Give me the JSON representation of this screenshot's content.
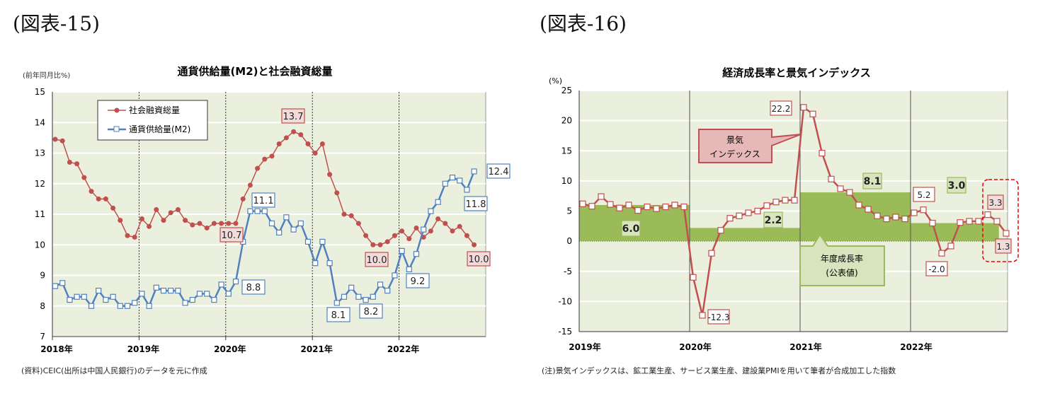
{
  "figures": {
    "left_label": "(図表-15)",
    "right_label": "(図表-16)"
  },
  "notes": {
    "left": "(資料)CEIC(出所は中国人民銀行)のデータを元に作成",
    "right": "(注)景気インデックスは、鉱工業生産、サービス業生産、建設業PMIを用いて筆者が合成加工した指数"
  },
  "chart_data": [
    {
      "type": "line",
      "title": "通貨供給量(M2)と社会融資総量",
      "ylabel": "(前年同月比%)",
      "ylim": [
        7,
        15
      ],
      "yticks": [
        7,
        8,
        9,
        10,
        11,
        12,
        13,
        14,
        15
      ],
      "xticks": [
        "2018年",
        "2019年",
        "2020年",
        "2021年",
        "2022年"
      ],
      "x_start": "2018-01",
      "x_end": "2022-11",
      "grid": true,
      "legend": "top-left",
      "colors": {
        "tsf": "#c0504d",
        "m2": "#4f81bd",
        "bg": "#ebf0de"
      },
      "series": [
        {
          "name": "社会融資総量",
          "values": [
            13.45,
            13.4,
            12.7,
            12.65,
            12.2,
            11.75,
            11.5,
            11.5,
            11.2,
            10.8,
            10.3,
            10.25,
            10.85,
            10.6,
            11.15,
            10.8,
            11.05,
            11.15,
            10.8,
            10.65,
            10.7,
            10.55,
            10.7,
            10.7,
            10.7,
            10.7,
            11.5,
            11.95,
            12.5,
            12.8,
            12.9,
            13.3,
            13.5,
            13.7,
            13.6,
            13.3,
            13.0,
            13.3,
            12.3,
            11.7,
            11.0,
            10.95,
            10.7,
            10.3,
            10.0,
            10.0,
            10.1,
            10.3,
            10.45,
            10.2,
            10.55,
            10.25,
            10.45,
            10.85,
            10.7,
            10.45,
            10.6,
            10.3,
            10.0
          ]
        },
        {
          "name": "通貨供給量(M2)",
          "values": [
            8.65,
            8.75,
            8.2,
            8.3,
            8.3,
            8.0,
            8.5,
            8.2,
            8.3,
            8.0,
            8.0,
            8.1,
            8.4,
            8.0,
            8.6,
            8.5,
            8.5,
            8.5,
            8.1,
            8.2,
            8.4,
            8.4,
            8.2,
            8.7,
            8.4,
            8.8,
            10.1,
            11.1,
            11.1,
            11.1,
            10.7,
            10.4,
            10.9,
            10.5,
            10.7,
            10.1,
            9.4,
            10.1,
            9.4,
            8.1,
            8.3,
            8.6,
            8.3,
            8.2,
            8.3,
            8.7,
            8.5,
            9.0,
            9.8,
            9.2,
            9.7,
            10.5,
            11.1,
            11.4,
            12.0,
            12.2,
            12.1,
            11.8,
            12.4
          ]
        }
      ],
      "annotations": [
        "13.7",
        "10.7",
        "10.0",
        "10.0",
        "11.1",
        "8.8",
        "8.1",
        "8.2",
        "9.2",
        "11.8",
        "12.4"
      ]
    },
    {
      "type": "line",
      "title": "経済成長率と景気インデックス",
      "ylabel": "(%)",
      "ylim": [
        -15,
        25
      ],
      "yticks": [
        -15,
        -10,
        -5,
        0,
        5,
        10,
        15,
        20,
        25
      ],
      "xticks": [
        "2019年",
        "2020年",
        "2021年",
        "2022年"
      ],
      "x_start": "2019-01",
      "x_end": "2022-11",
      "grid": true,
      "colors": {
        "line": "#c0504d",
        "bar": "#9bbb59",
        "bg": "#ebf0de"
      },
      "series": [
        {
          "name": "景気インデックス",
          "values": [
            6.2,
            5.8,
            7.4,
            6.1,
            5.5,
            6.0,
            5.1,
            5.7,
            5.4,
            5.7,
            6.0,
            5.7,
            -6.0,
            -12.3,
            -2.0,
            1.8,
            3.8,
            4.2,
            4.7,
            5.0,
            5.9,
            6.5,
            6.8,
            6.8,
            22.2,
            21.1,
            14.6,
            10.3,
            8.7,
            8.1,
            6.0,
            5.3,
            4.2,
            3.7,
            4.0,
            3.7,
            4.7,
            5.2,
            3.0,
            -2.0,
            -0.8,
            3.1,
            3.3,
            3.3,
            4.4,
            3.3,
            1.3
          ]
        }
      ],
      "annual": {
        "name": "年度成長率(公表値)",
        "years": [
          "2019",
          "2020",
          "2021",
          "2022"
        ],
        "values": [
          6.0,
          2.2,
          8.1,
          3.0
        ]
      },
      "annual_labels": [
        "6.0",
        "2.2",
        "8.1",
        "3.0"
      ],
      "annotations": [
        "22.2",
        "-12.3",
        "5.2",
        "-2.0",
        "3.3",
        "1.3"
      ],
      "callouts": {
        "index_line1": "景気",
        "index_line2": "インデックス",
        "growth_line1": "年度成長率",
        "growth_line2": "(公表値)"
      }
    }
  ]
}
